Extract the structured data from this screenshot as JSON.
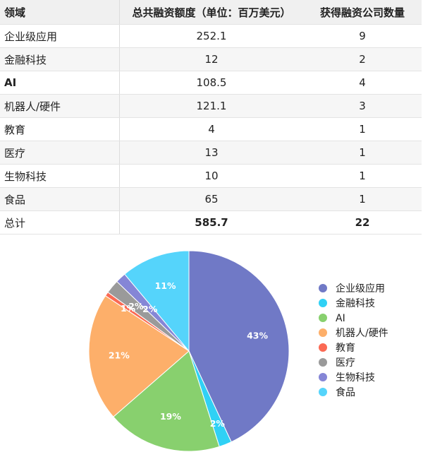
{
  "table": {
    "headers": [
      "领域",
      "总共融资额度（单位：百万美元）",
      "获得融资公司数量"
    ],
    "rows": [
      {
        "field": "企业级应用",
        "amount": "252.1",
        "count": "9"
      },
      {
        "field": "金融科技",
        "amount": "12",
        "count": "2"
      },
      {
        "field": "AI",
        "amount": "108.5",
        "count": "4"
      },
      {
        "field": "机器人/硬件",
        "amount": "121.1",
        "count": "3"
      },
      {
        "field": "教育",
        "amount": "4",
        "count": "1"
      },
      {
        "field": "医疗",
        "amount": "13",
        "count": "1"
      },
      {
        "field": "生物科技",
        "amount": "10",
        "count": "1"
      },
      {
        "field": "食品",
        "amount": "65",
        "count": "1"
      }
    ],
    "total": {
      "field": "总计",
      "amount": "585.7",
      "count": "22"
    }
  },
  "chart_data": {
    "type": "pie",
    "categories": [
      "企业级应用",
      "金融科技",
      "AI",
      "机器人/硬件",
      "教育",
      "医疗",
      "生物科技",
      "食品"
    ],
    "values": [
      252.1,
      12,
      108.5,
      121.1,
      4,
      13,
      10,
      65
    ],
    "labels": [
      "43%",
      "2%",
      "19%",
      "21%",
      "1%",
      "2%",
      "2%",
      "11%"
    ],
    "colors": [
      "#7079c6",
      "#30d1f5",
      "#88d06e",
      "#fdaf6a",
      "#fb6a54",
      "#9a9a9a",
      "#8586d6",
      "#55d4fb"
    ],
    "legend_position": "right",
    "start_angle": "12 o'clock",
    "direction": "clockwise"
  }
}
